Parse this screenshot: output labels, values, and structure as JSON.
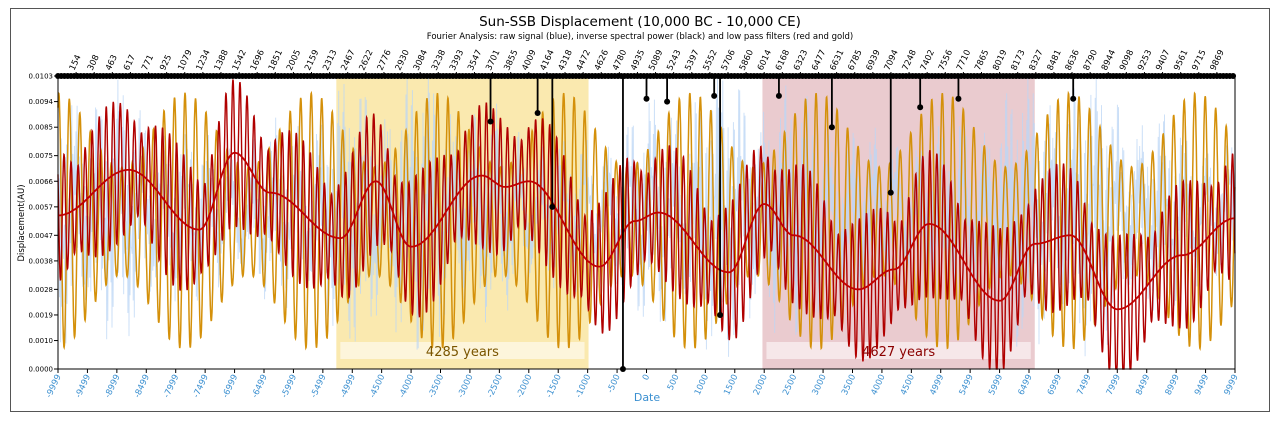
{
  "chart_data": {
    "type": "line",
    "title": "Sun-SSB Displacement (10,000 BC - 10,000 CE)",
    "subtitle": "Fourier Analysis: raw signal (blue), inverse spectral power (black) and low pass filters (red and gold)",
    "xlabel": "Date",
    "ylabel": "Displacement(AU)",
    "xlim": [
      -9999,
      9999
    ],
    "ylim": [
      0.0,
      0.0103
    ],
    "x_ticks": [
      -9999,
      -9499,
      -8999,
      -8499,
      -7999,
      -7499,
      -6999,
      -6499,
      -5999,
      -5499,
      -4999,
      -4500,
      -4000,
      -3500,
      -3000,
      -2500,
      -2000,
      -1500,
      -1000,
      -500,
      0,
      500,
      1000,
      1500,
      2000,
      2500,
      3000,
      3500,
      4000,
      4500,
      4999,
      5499,
      5999,
      6499,
      6999,
      7499,
      7999,
      8499,
      8999,
      9499,
      9999
    ],
    "x_tick_labels": [
      "-9999",
      "-9499",
      "-8999",
      "-8499",
      "-7999",
      "-7499",
      "-6999",
      "-6499",
      "-5999",
      "-5499",
      "-4999",
      "-4500",
      "-4000",
      "-3500",
      "-3000",
      "-2500",
      "-2000",
      "-1500",
      "-1000",
      "-500",
      "0",
      "500",
      "1000",
      "1500",
      "2000",
      "2500",
      "3000",
      "3500",
      "4000",
      "4500",
      "4999",
      "5499",
      "5999",
      "6499",
      "6999",
      "7499",
      "7999",
      "8499",
      "8999",
      "9499",
      "9999"
    ],
    "y_ticks": [
      0.0,
      0.001,
      0.0019,
      0.0028,
      0.0038,
      0.0047,
      0.0057,
      0.0066,
      0.0075,
      0.0085,
      0.0094,
      0.0103
    ],
    "y_tick_labels": [
      "0.0000",
      "0.0010",
      "0.0019",
      "0.0028",
      "0.0038",
      "0.0047",
      "0.0057",
      "0.0066",
      "0.0075",
      "0.0085",
      "0.0094",
      "0.0103"
    ],
    "top_tick_labels": [
      "154",
      "308",
      "463",
      "617",
      "771",
      "925",
      "1079",
      "1234",
      "1388",
      "1542",
      "1696",
      "1851",
      "2005",
      "2159",
      "2313",
      "2467",
      "2622",
      "2776",
      "2930",
      "3084",
      "3238",
      "3393",
      "3547",
      "3701",
      "3855",
      "4009",
      "4164",
      "4318",
      "4472",
      "4626",
      "4780",
      "4935",
      "5089",
      "5243",
      "5397",
      "5552",
      "5706",
      "5860",
      "6014",
      "6168",
      "6323",
      "6477",
      "6631",
      "6785",
      "6939",
      "7094",
      "7248",
      "7402",
      "7556",
      "7710",
      "7865",
      "8019",
      "8173",
      "8327",
      "8481",
      "8636",
      "8790",
      "8944",
      "9098",
      "9253",
      "9407",
      "9561",
      "9715",
      "9869"
    ],
    "shaded_regions": [
      {
        "label": "4285 years",
        "x_range": [
          -5270,
          -985
        ],
        "color": "#f5d76e"
      },
      {
        "label": "4627 years",
        "x_range": [
          1970,
          6597
        ],
        "color": "#d9a0a8"
      }
    ],
    "series": [
      {
        "name": "raw signal",
        "color": "#bcd6f5"
      },
      {
        "name": "inverse spectral power",
        "color": "#000000",
        "stems": [
          [
            -2650,
            0.0087
          ],
          [
            -1850,
            0.009
          ],
          [
            -1600,
            0.0057
          ],
          [
            -400,
            0.0
          ],
          [
            0,
            0.0095
          ],
          [
            350,
            0.0094
          ],
          [
            1250,
            0.0019
          ],
          [
            1150,
            0.0096
          ],
          [
            2250,
            0.0096
          ],
          [
            3150,
            0.0085
          ],
          [
            4150,
            0.0062
          ],
          [
            4650,
            0.0092
          ],
          [
            5300,
            0.0095
          ],
          [
            7250,
            0.0095
          ]
        ]
      },
      {
        "name": "low pass filter (red)",
        "color": "#c00000",
        "trend_x": [
          -9999,
          -8799,
          -7599,
          -6999,
          -6399,
          -5199,
          -4599,
          -3999,
          -2799,
          -2399,
          -1999,
          -799,
          -199,
          201,
          1401,
          2001,
          2501,
          3601,
          4201,
          4801,
          6001,
          6601,
          7201,
          8001,
          9101,
          9999
        ],
        "trend_y": [
          0.0054,
          0.007,
          0.0049,
          0.0076,
          0.0062,
          0.0046,
          0.0066,
          0.0043,
          0.0068,
          0.0064,
          0.0066,
          0.0036,
          0.0052,
          0.0055,
          0.0034,
          0.0058,
          0.0047,
          0.0028,
          0.0035,
          0.0051,
          0.0024,
          0.0044,
          0.0047,
          0.0021,
          0.004,
          0.0053
        ]
      },
      {
        "name": "low pass filter (gold)",
        "color": "#d4900a"
      }
    ],
    "grid": false,
    "legend": "none"
  }
}
